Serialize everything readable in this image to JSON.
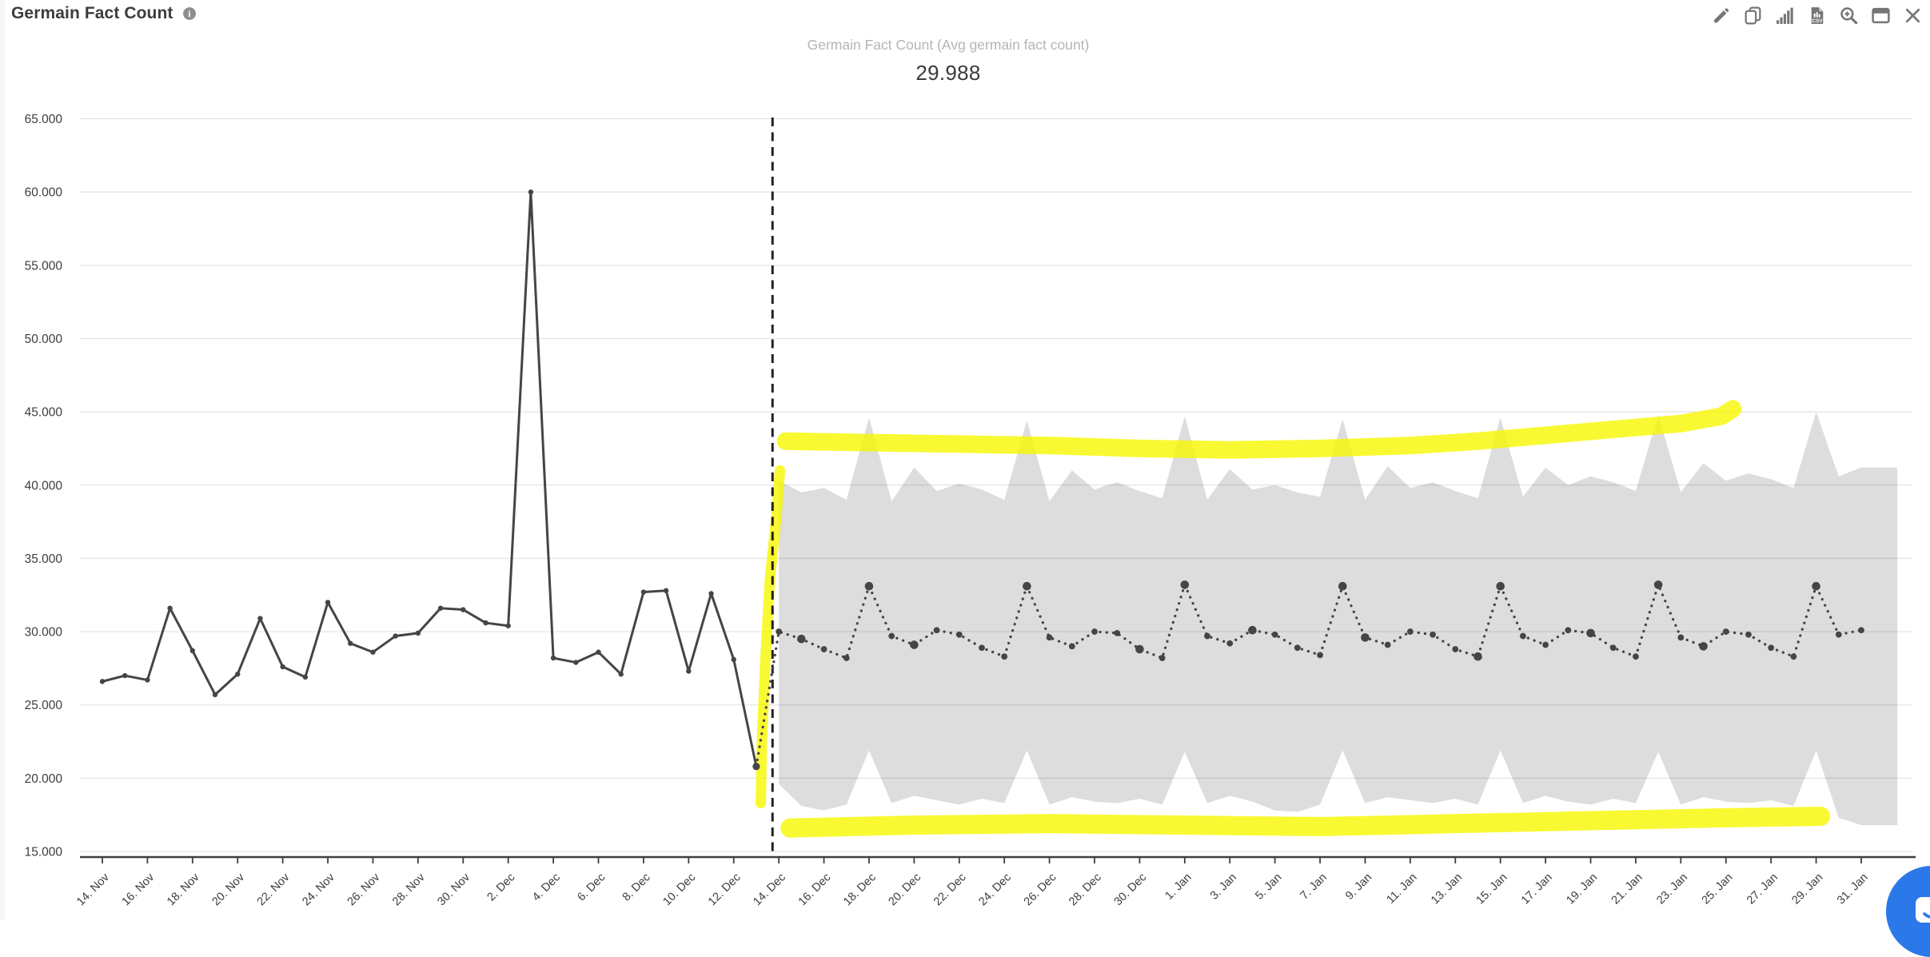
{
  "header": {
    "title": "Germain Fact Count"
  },
  "toolbar": {
    "buttons": [
      {
        "name": "edit",
        "icon": "pencil-icon"
      },
      {
        "name": "duplicate",
        "icon": "copy-icon"
      },
      {
        "name": "analytics",
        "icon": "bar-chart-icon"
      },
      {
        "name": "export-csv",
        "icon": "csv-export-icon"
      },
      {
        "name": "zoom-in",
        "icon": "magnifier-plus-icon"
      },
      {
        "name": "expand",
        "icon": "window-icon"
      },
      {
        "name": "close",
        "icon": "close-icon"
      }
    ]
  },
  "kpi": {
    "label": "Germain Fact Count (Avg germain fact count)",
    "value": "29.988"
  },
  "chart_data": {
    "type": "line",
    "title": "Germain Fact Count (Avg germain fact count)",
    "value_unit": "thousands (labels use dot as thousands separator)",
    "ylim": [
      15000,
      65000
    ],
    "grid": "horizontal",
    "y_ticks": [
      "65.000",
      "60.000",
      "55.000",
      "50.000",
      "45.000",
      "40.000",
      "35.000",
      "30.000",
      "25.000",
      "20.000",
      "15.000"
    ],
    "y_tick_values": [
      65,
      60,
      55,
      50,
      45,
      40,
      35,
      30,
      25,
      20,
      15
    ],
    "x_tick_labels": [
      "14. Nov",
      "16. Nov",
      "18. Nov",
      "20. Nov",
      "22. Nov",
      "24. Nov",
      "26. Nov",
      "28. Nov",
      "30. Nov",
      "2. Dec",
      "4. Dec",
      "6. Dec",
      "8. Dec",
      "10. Dec",
      "12. Dec",
      "14. Dec",
      "16. Dec",
      "18. Dec",
      "20. Dec",
      "22. Dec",
      "24. Dec",
      "26. Dec",
      "28. Dec",
      "30. Dec",
      "1. Jan",
      "3. Jan",
      "5. Jan",
      "7. Jan",
      "9. Jan",
      "11. Jan",
      "13. Jan",
      "15. Jan",
      "17. Jan",
      "19. Jan",
      "21. Jan",
      "23. Jan",
      "25. Jan",
      "27. Jan",
      "29. Jan",
      "31. Jan"
    ],
    "x_label_step_days": 2,
    "total_days": 78,
    "forecast_boundary_day": 29.72,
    "spike_days": [
      34,
      41,
      48,
      55,
      62,
      69,
      76
    ],
    "series": [
      {
        "name": "actual",
        "style": "solid",
        "color": "#454545",
        "start_day": 0,
        "values": [
          26.6,
          27.0,
          26.7,
          31.6,
          28.7,
          25.7,
          27.1,
          30.9,
          27.6,
          26.9,
          32.0,
          29.2,
          28.6,
          29.7,
          29.9,
          31.6,
          31.5,
          30.6,
          30.4,
          60.0,
          28.2,
          27.9,
          28.6,
          27.1,
          32.7,
          32.8,
          27.3,
          32.6,
          28.1,
          20.8
        ]
      },
      {
        "name": "forecast",
        "style": "dotted",
        "color": "#454545",
        "start_day": 29,
        "values": [
          20.8,
          30.0,
          29.5,
          28.8,
          28.2,
          33.1,
          29.7,
          29.1,
          30.1,
          29.8,
          28.9,
          28.3,
          33.1,
          29.6,
          29.0,
          30.0,
          29.9,
          28.8,
          28.2,
          33.2,
          29.7,
          29.2,
          30.1,
          29.8,
          28.9,
          28.4,
          33.1,
          29.6,
          29.1,
          30.0,
          29.8,
          28.8,
          28.3,
          33.1,
          29.7,
          29.1,
          30.1,
          29.9,
          28.9,
          28.3,
          33.2,
          29.6,
          29.0,
          30.0,
          29.8,
          28.9,
          28.3,
          33.1,
          29.8,
          30.1
        ]
      }
    ],
    "confidence_band": {
      "color": "rgba(0,0,0,0.135)",
      "start_day": 30,
      "right_edge_day": 79.6,
      "upper": [
        40.3,
        39.5,
        39.8,
        39.0,
        44.6,
        38.9,
        41.2,
        39.6,
        40.1,
        39.7,
        39.0,
        44.4,
        38.9,
        41.0,
        39.7,
        40.2,
        39.6,
        39.1,
        44.7,
        39.0,
        41.1,
        39.7,
        40.0,
        39.5,
        39.2,
        44.5,
        39.0,
        41.3,
        39.8,
        40.2,
        39.6,
        39.1,
        44.6,
        39.2,
        41.2,
        40.0,
        40.6,
        40.2,
        39.6,
        44.8,
        39.5,
        41.5,
        40.3,
        40.8,
        40.4,
        39.8,
        45.0,
        40.6,
        41.2
      ],
      "lower": [
        19.6,
        18.1,
        17.8,
        18.2,
        21.9,
        18.3,
        18.8,
        18.5,
        18.2,
        18.6,
        18.3,
        21.9,
        18.2,
        18.7,
        18.4,
        18.3,
        18.6,
        18.2,
        21.8,
        18.3,
        18.8,
        18.4,
        17.8,
        17.7,
        18.2,
        21.9,
        18.3,
        18.7,
        18.5,
        18.3,
        18.6,
        18.2,
        21.9,
        18.3,
        18.8,
        18.4,
        18.2,
        18.6,
        18.3,
        21.8,
        18.2,
        18.7,
        18.4,
        18.3,
        18.5,
        18.1,
        21.9,
        17.3,
        16.8
      ]
    },
    "annotations": {
      "color": "#f8f800",
      "opacity": 0.8,
      "strokes": [
        {
          "id": "highlight-top",
          "width": 22,
          "points": [
            [
              30.3,
              43.0
            ],
            [
              34,
              42.9
            ],
            [
              38,
              42.8
            ],
            [
              42,
              42.7
            ],
            [
              46,
              42.5
            ],
            [
              50,
              42.4
            ],
            [
              54,
              42.5
            ],
            [
              58,
              42.7
            ],
            [
              61,
              43.0
            ],
            [
              64,
              43.4
            ],
            [
              67,
              43.8
            ],
            [
              70,
              44.2
            ],
            [
              71.8,
              44.7
            ],
            [
              72.3,
              45.2
            ]
          ]
        },
        {
          "id": "highlight-bottom",
          "width": 24,
          "points": [
            [
              30.5,
              16.6
            ],
            [
              36,
              16.8
            ],
            [
              42,
              16.9
            ],
            [
              48,
              16.8
            ],
            [
              54,
              16.7
            ],
            [
              60,
              16.9
            ],
            [
              66,
              17.1
            ],
            [
              72,
              17.3
            ],
            [
              76.2,
              17.4
            ]
          ]
        },
        {
          "id": "highlight-vertical",
          "width": 13,
          "points": [
            [
              30.05,
              41.0
            ],
            [
              29.9,
              38.0
            ],
            [
              29.6,
              33.5
            ],
            [
              29.4,
              28.0
            ],
            [
              29.25,
              22.5
            ],
            [
              29.2,
              18.3
            ]
          ]
        }
      ]
    },
    "colors": {
      "grid": "#e3e3e3",
      "axis": "#3f3f3f",
      "axis_text": "#3d3d3d",
      "boundary": "#222222"
    }
  },
  "chat": {
    "name": "chat-launcher"
  }
}
